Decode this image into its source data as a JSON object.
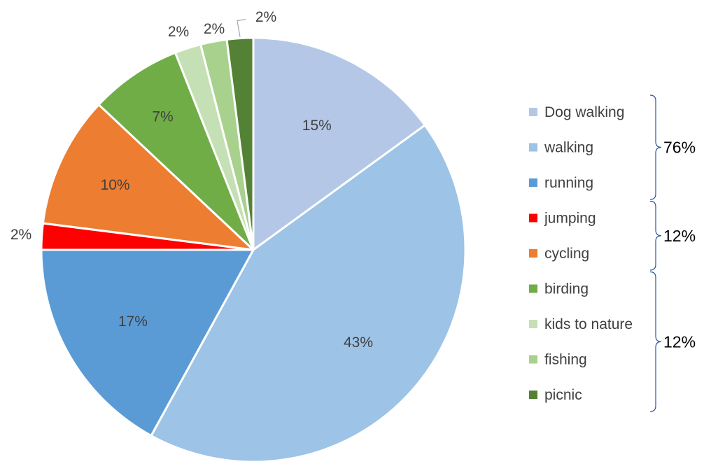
{
  "chart_data": {
    "type": "pie",
    "title": "",
    "categories": [
      "Dog walking",
      "walking",
      "running",
      "jumping",
      "cycling",
      "birding",
      "kids to nature",
      "fishing",
      "picnic"
    ],
    "values": [
      15,
      43,
      17,
      2,
      10,
      7,
      2,
      2,
      2
    ],
    "data_labels": [
      "15%",
      "43%",
      "17%",
      "2%",
      "10%",
      "7%",
      "2%",
      "2%",
      "2%"
    ],
    "colors": [
      "#b4c7e7",
      "#9dc3e6",
      "#5b9bd5",
      "#ff0000",
      "#ed7d31",
      "#70ad47",
      "#c5e0b4",
      "#a9d18e",
      "#548235"
    ],
    "start_angle_deg": 0,
    "direction": "clockwise",
    "legend": {
      "position": "right",
      "groups": [
        {
          "label": "76%",
          "members": [
            "Dog walking",
            "walking",
            "running"
          ]
        },
        {
          "label": "12%",
          "members": [
            "jumping",
            "cycling"
          ]
        },
        {
          "label": "12%",
          "members": [
            "birding",
            "kids to nature",
            "fishing",
            "picnic"
          ]
        }
      ]
    }
  }
}
